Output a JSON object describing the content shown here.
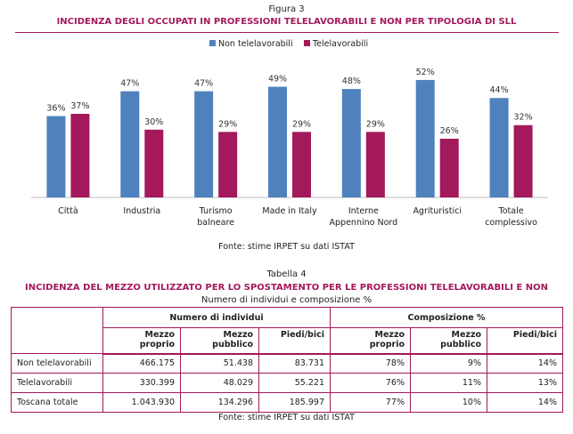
{
  "figure": {
    "label": "Figura 3",
    "title": "INCIDENZA DEGLI OCCUPATI IN PROFESSIONI TELELAVORABILI E NON PER TIPOLOGIA DI SLL",
    "source": "Fonte: stime IRPET su dati ISTAT"
  },
  "chart_data": {
    "type": "bar",
    "title": "INCIDENZA DEGLI OCCUPATI IN PROFESSIONI TELELAVORABILI E NON PER TIPOLOGIA DI SLL",
    "categories": [
      [
        "Città"
      ],
      [
        "Industria"
      ],
      [
        "Turismo",
        "balneare"
      ],
      [
        "Made in Italy"
      ],
      [
        "Interne",
        "Appennino Nord"
      ],
      [
        "Agrituristici"
      ],
      [
        "Totale",
        "complessivo"
      ]
    ],
    "series": [
      {
        "name": "Non telelavorabili",
        "color": "#4f81bd",
        "values": [
          36,
          47,
          47,
          49,
          48,
          52,
          44
        ],
        "labels": [
          "36%",
          "47%",
          "47%",
          "49%",
          "48%",
          "52%",
          "44%"
        ]
      },
      {
        "name": "Telelavorabili",
        "color": "#a3195b",
        "values": [
          37,
          30,
          29,
          29,
          29,
          26,
          32
        ],
        "labels": [
          "37%",
          "30%",
          "29%",
          "29%",
          "29%",
          "26%",
          "32%"
        ]
      }
    ],
    "unit": "%",
    "legend": "top-center",
    "grid": false
  },
  "table": {
    "label": "Tabella 4",
    "title": "INCIDENZA DEL MEZZO UTILIZZATO PER LO SPOSTAMENTO PER LE PROFESSIONI TELELAVORABILI E NON",
    "subtitle": "Numero di individui e composizione %",
    "groups": [
      "Numero di individui",
      "Composizione %"
    ],
    "columns": [
      [
        "Mezzo",
        "proprio"
      ],
      [
        "Mezzo",
        "pubblico"
      ],
      [
        "Piedi/bici",
        ""
      ],
      [
        "Mezzo",
        "proprio"
      ],
      [
        "Mezzo",
        "pubblico"
      ],
      [
        "Piedi/bici",
        ""
      ]
    ],
    "rows": [
      [
        "Non telelavorabili",
        "466.175",
        "51.438",
        "83.731",
        "78%",
        "9%",
        "14%"
      ],
      [
        "Telelavorabili",
        "330.399",
        "48.029",
        "55.221",
        "76%",
        "11%",
        "13%"
      ],
      [
        "Toscana totale",
        "1.043.930",
        "134.296",
        "185.997",
        "77%",
        "10%",
        "14%"
      ]
    ],
    "source": "Fonte: stime IRPET su dati ISTAT"
  }
}
